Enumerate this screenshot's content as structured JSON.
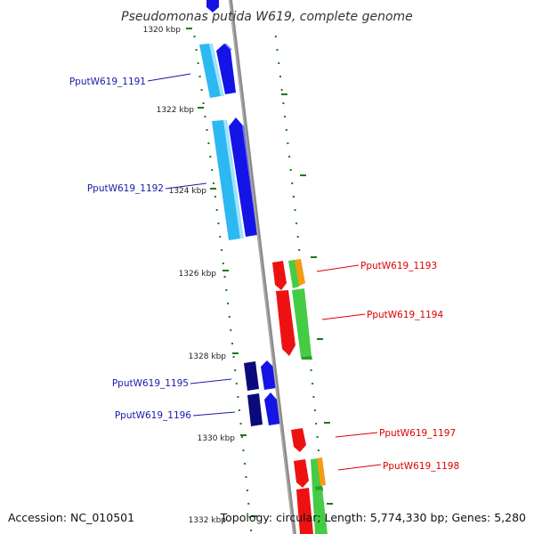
{
  "title": "Pseudomonas putida W619, complete genome",
  "accession": "Accession: NC_010501",
  "summary": "Topology: circular; Length: 5,774,330 bp; Genes: 5,280",
  "colors": {
    "backbone": "#8c8c8c",
    "tick": "#1a7a1a",
    "forward_label": "#1a1aaa",
    "reverse_label": "#dd0000",
    "cds_forward": "#1414e6",
    "cds_forward_light": "#2cb8f0",
    "cds_forward_dark": "#0a0a7a",
    "cds_reverse": "#ee1111",
    "cds_reverse_alt": "#44cc44",
    "cds_reverse_orange": "#f39c12"
  },
  "scale": {
    "unit": "kbp",
    "ticks": [
      {
        "value": 1320,
        "label": "1320 kbp"
      },
      {
        "value": 1322,
        "label": "1322 kbp"
      },
      {
        "value": 1324,
        "label": "1324 kbp"
      },
      {
        "value": 1326,
        "label": "1326 kbp"
      },
      {
        "value": 1328,
        "label": "1328 kbp"
      },
      {
        "value": 1330,
        "label": "1330 kbp"
      },
      {
        "value": 1332,
        "label": "1332 kbp"
      }
    ]
  },
  "genes": [
    {
      "id": "PputW619_1191",
      "strand": "forward"
    },
    {
      "id": "PputW619_1192",
      "strand": "forward"
    },
    {
      "id": "PputW619_1193",
      "strand": "reverse"
    },
    {
      "id": "PputW619_1194",
      "strand": "reverse"
    },
    {
      "id": "PputW619_1195",
      "strand": "forward"
    },
    {
      "id": "PputW619_1196",
      "strand": "forward"
    },
    {
      "id": "PputW619_1197",
      "strand": "reverse"
    },
    {
      "id": "PputW619_1198",
      "strand": "reverse"
    }
  ]
}
